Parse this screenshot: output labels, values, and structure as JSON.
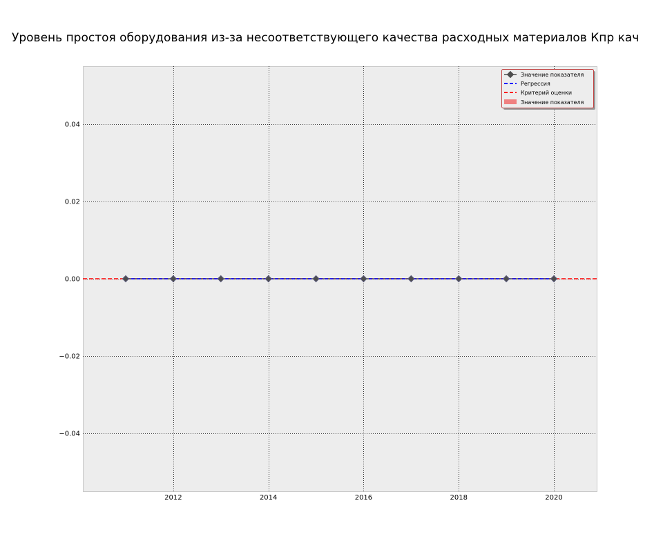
{
  "chart_data": {
    "type": "line",
    "title": "Уровень простоя оборудования из-за несоответствующего качества расходных материалов Кпр кач",
    "xlabel": "",
    "ylabel": "",
    "xlim": [
      2010.1,
      2020.9
    ],
    "ylim": [
      -0.055,
      0.055
    ],
    "x_ticks": [
      2012,
      2014,
      2016,
      2018,
      2020
    ],
    "y_ticks": [
      -0.04,
      -0.02,
      0.0,
      0.02,
      0.04
    ],
    "x_tick_labels": [
      "2012",
      "2014",
      "2016",
      "2018",
      "2020"
    ],
    "y_tick_labels": [
      "−0.04",
      "−0.02",
      "0.00",
      "0.02",
      "0.04"
    ],
    "grid": true,
    "legend_position": "top-right",
    "series": [
      {
        "name": "Значение показателя",
        "kind": "line-marker",
        "marker": "diamond",
        "color": "#4d4d4d",
        "x": [
          2011,
          2012,
          2013,
          2014,
          2015,
          2016,
          2017,
          2018,
          2019,
          2020
        ],
        "values": [
          0,
          0,
          0,
          0,
          0,
          0,
          0,
          0,
          0,
          0
        ]
      },
      {
        "name": "Регрессия",
        "kind": "dashed-line",
        "color": "#0000ff",
        "x": [
          2011,
          2020
        ],
        "values": [
          0,
          0
        ]
      },
      {
        "name": "Критерий оценки",
        "kind": "dashed-hline",
        "color": "#ff0000",
        "values": [
          0
        ]
      },
      {
        "name": "Значение показателя",
        "kind": "bar",
        "color": "#f08080",
        "x": [
          2011,
          2012,
          2013,
          2014,
          2015,
          2016,
          2017,
          2018,
          2019,
          2020
        ],
        "values": [
          0,
          0,
          0,
          0,
          0,
          0,
          0,
          0,
          0,
          0
        ]
      }
    ],
    "colors": {
      "plot_background": "#ededed",
      "grid": "#000000",
      "marker_fill": "#4d4d4d",
      "marker_edge": "#5a5a7a"
    }
  }
}
